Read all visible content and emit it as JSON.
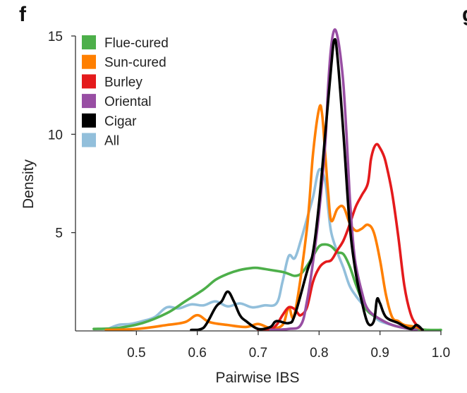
{
  "figure": {
    "panel_label": "f",
    "next_panel_label": "g"
  },
  "chart_data": {
    "type": "line",
    "title": "",
    "xlabel": "Pairwise IBS",
    "ylabel": "Density",
    "xlim": [
      0.4,
      1.0
    ],
    "ylim": [
      0,
      15
    ],
    "x_ticks": [
      0.5,
      0.6,
      0.7,
      0.8,
      0.9,
      1.0
    ],
    "x_tick_labels": [
      "0.5",
      "0.6",
      "0.7",
      "0.8",
      "0.9",
      "1.0"
    ],
    "y_ticks": [
      5,
      10,
      15
    ],
    "y_tick_labels": [
      "5",
      "10",
      "15"
    ],
    "grid": false,
    "legend_position": "top-left",
    "series": [
      {
        "name": "All",
        "color": "#92bfdb",
        "x": [
          0.45,
          0.47,
          0.49,
          0.51,
          0.53,
          0.55,
          0.57,
          0.59,
          0.61,
          0.63,
          0.65,
          0.67,
          0.69,
          0.71,
          0.73,
          0.74,
          0.75,
          0.76,
          0.77,
          0.78,
          0.79,
          0.8,
          0.81,
          0.815,
          0.82,
          0.83,
          0.84,
          0.85,
          0.86,
          0.87,
          0.88,
          0.89,
          0.9,
          0.92,
          0.94,
          0.96
        ],
        "y": [
          0.05,
          0.3,
          0.35,
          0.5,
          0.7,
          1.2,
          1.15,
          1.35,
          1.3,
          1.5,
          1.25,
          1.4,
          1.2,
          1.3,
          1.4,
          2.5,
          3.8,
          3.7,
          4.6,
          5.7,
          6.8,
          8.2,
          7.6,
          6.2,
          5.0,
          4.0,
          3.2,
          2.3,
          1.8,
          1.4,
          1.0,
          0.75,
          0.5,
          0.3,
          0.15,
          0.05
        ]
      },
      {
        "name": "Flue-cured",
        "color": "#4daf4a",
        "x": [
          0.43,
          0.47,
          0.51,
          0.55,
          0.58,
          0.61,
          0.63,
          0.65,
          0.67,
          0.69,
          0.7,
          0.72,
          0.74,
          0.75,
          0.76,
          0.77,
          0.78,
          0.79,
          0.8,
          0.81,
          0.82,
          0.83,
          0.84,
          0.85,
          0.86,
          0.87,
          0.88,
          0.9,
          0.92,
          0.94,
          0.96,
          0.98,
          1.0
        ],
        "y": [
          0.1,
          0.15,
          0.4,
          0.9,
          1.5,
          2.1,
          2.6,
          2.9,
          3.1,
          3.2,
          3.2,
          3.1,
          3.0,
          2.9,
          2.8,
          2.9,
          3.3,
          3.8,
          4.3,
          4.4,
          4.3,
          4.0,
          3.9,
          3.3,
          2.4,
          1.6,
          1.0,
          0.6,
          0.3,
          0.15,
          0.1,
          0.05,
          0.05
        ]
      },
      {
        "name": "Sun-cured",
        "color": "#ff7f00",
        "x": [
          0.45,
          0.5,
          0.55,
          0.58,
          0.6,
          0.62,
          0.65,
          0.68,
          0.7,
          0.72,
          0.74,
          0.75,
          0.76,
          0.78,
          0.79,
          0.8,
          0.805,
          0.81,
          0.815,
          0.82,
          0.83,
          0.84,
          0.85,
          0.86,
          0.87,
          0.88,
          0.89,
          0.9,
          0.91,
          0.92,
          0.93,
          0.94,
          0.96,
          0.97
        ],
        "y": [
          0.05,
          0.1,
          0.3,
          0.45,
          0.8,
          0.45,
          0.3,
          0.2,
          0.35,
          0.15,
          0.3,
          1.2,
          0.9,
          5.2,
          9.0,
          11.3,
          11.0,
          9.0,
          7.0,
          5.6,
          6.2,
          6.3,
          5.5,
          5.1,
          5.2,
          5.4,
          5.0,
          3.6,
          1.8,
          0.7,
          0.5,
          0.3,
          0.2,
          0.05
        ]
      },
      {
        "name": "Burley",
        "color": "#e41a1c",
        "x": [
          0.7,
          0.72,
          0.73,
          0.74,
          0.75,
          0.76,
          0.765,
          0.77,
          0.78,
          0.79,
          0.8,
          0.81,
          0.82,
          0.83,
          0.84,
          0.85,
          0.86,
          0.87,
          0.88,
          0.885,
          0.89,
          0.895,
          0.9,
          0.905,
          0.91,
          0.92,
          0.93,
          0.94,
          0.95,
          0.96,
          0.97
        ],
        "y": [
          0.05,
          0.1,
          0.3,
          0.8,
          1.2,
          1.1,
          0.9,
          0.8,
          1.2,
          2.5,
          3.2,
          3.5,
          3.6,
          4.1,
          4.6,
          5.4,
          6.3,
          6.9,
          7.5,
          8.7,
          9.3,
          9.5,
          9.3,
          9.0,
          8.5,
          7.0,
          4.8,
          2.3,
          0.9,
          0.3,
          0.05
        ]
      },
      {
        "name": "Oriental",
        "color": "#984ea3",
        "x": [
          0.72,
          0.75,
          0.77,
          0.78,
          0.79,
          0.8,
          0.81,
          0.815,
          0.82,
          0.825,
          0.83,
          0.835,
          0.84,
          0.845,
          0.85,
          0.855,
          0.86,
          0.87,
          0.88,
          0.9,
          0.92,
          0.94,
          0.96
        ],
        "y": [
          0.05,
          0.1,
          0.3,
          1.5,
          3.5,
          6.0,
          9.5,
          12.5,
          14.5,
          15.3,
          15.0,
          14.0,
          12.5,
          10.0,
          7.0,
          4.8,
          3.4,
          2.0,
          1.1,
          0.6,
          0.3,
          0.15,
          0.05
        ]
      },
      {
        "name": "Cigar",
        "color": "#000000",
        "x": [
          0.59,
          0.61,
          0.63,
          0.64,
          0.65,
          0.66,
          0.67,
          0.68,
          0.7,
          0.72,
          0.73,
          0.75,
          0.76,
          0.78,
          0.79,
          0.8,
          0.81,
          0.82,
          0.825,
          0.83,
          0.84,
          0.85,
          0.86,
          0.87,
          0.88,
          0.89,
          0.895,
          0.9,
          0.91,
          0.93,
          0.95,
          0.96,
          0.97
        ],
        "y": [
          0.05,
          0.15,
          1.2,
          1.5,
          2.0,
          1.5,
          0.8,
          0.5,
          0.1,
          0.2,
          0.5,
          0.4,
          0.8,
          3.0,
          4.0,
          6.5,
          10.0,
          13.5,
          14.8,
          14.0,
          10.0,
          5.5,
          3.0,
          1.5,
          0.4,
          0.5,
          1.6,
          1.4,
          0.7,
          0.4,
          0.1,
          0.3,
          0.05
        ]
      }
    ],
    "legend_order": [
      "Flue-cured",
      "Sun-cured",
      "Burley",
      "Oriental",
      "Cigar",
      "All"
    ]
  }
}
